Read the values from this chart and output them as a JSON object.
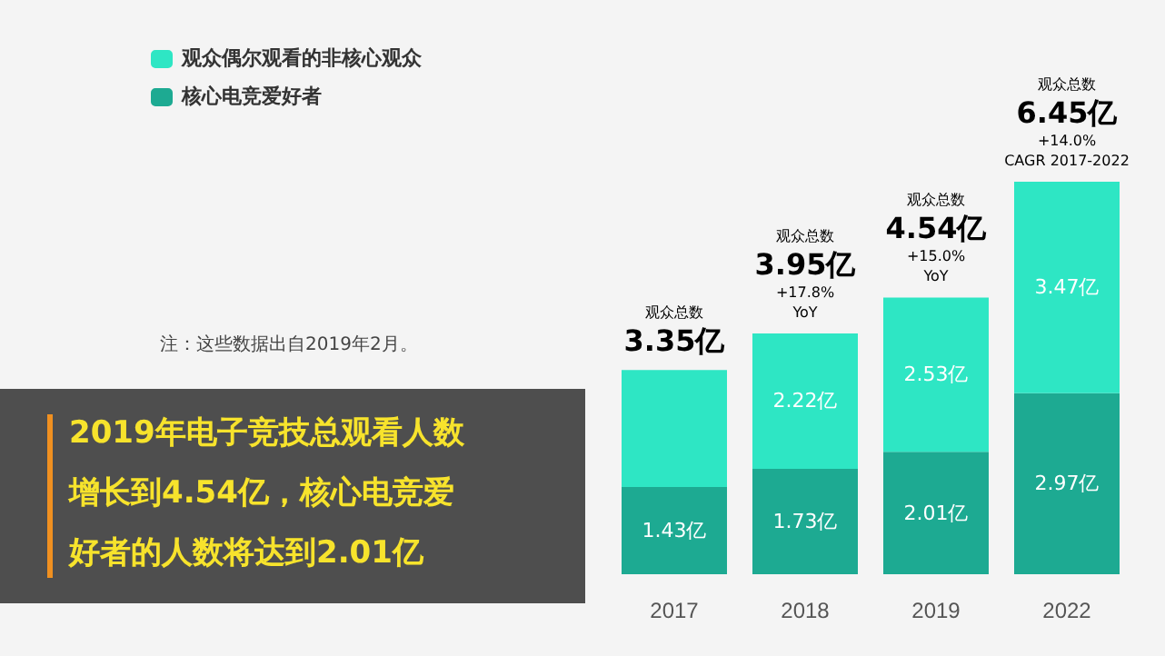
{
  "chart_data": {
    "type": "bar",
    "stacked": true,
    "legend": "top left",
    "categories": [
      "2017",
      "2018",
      "2019",
      "2022"
    ],
    "series": [
      {
        "name": "核心电竞爱好者",
        "color": "#1daa92",
        "values": [
          1.43,
          1.73,
          2.01,
          2.97
        ],
        "value_labels": [
          "1.43亿",
          "1.73亿",
          "2.01亿",
          "2.97亿"
        ]
      },
      {
        "name": "观众偶尔观看的非核心观众",
        "color": "#2ee6c4",
        "values": [
          1.92,
          2.22,
          2.53,
          3.47
        ],
        "value_labels": [
          null,
          "2.22亿",
          "2.53亿",
          "3.47亿"
        ]
      }
    ],
    "totals": [
      "3.35亿",
      "3.95亿",
      "4.54亿",
      "6.45亿"
    ],
    "annotations": [
      "观众总数",
      "观众总数",
      "+17.8%\nYoY",
      "观众总数",
      "+15.0%\nYoY",
      "观众总数",
      "+14.0%\nCAGR 2017-2022",
      "注：这些数据出自2019年2月。",
      "2019年电子竞技总观看人数增长到4.54亿，核心电竞爱好者的人数将达到2.01亿"
    ]
  }
}
